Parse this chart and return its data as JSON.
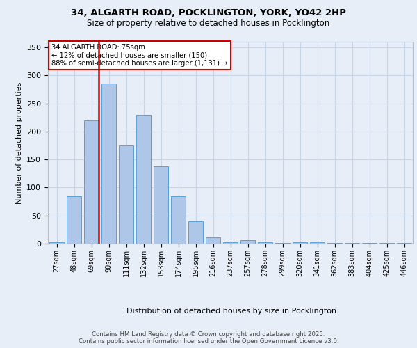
{
  "title_line1": "34, ALGARTH ROAD, POCKLINGTON, YORK, YO42 2HP",
  "title_line2": "Size of property relative to detached houses in Pocklington",
  "xlabel": "Distribution of detached houses by size in Pocklington",
  "ylabel": "Number of detached properties",
  "footer_line1": "Contains HM Land Registry data © Crown copyright and database right 2025.",
  "footer_line2": "Contains public sector information licensed under the Open Government Licence v3.0.",
  "annotation_line1": "34 ALGARTH ROAD: 75sqm",
  "annotation_line2": "← 12% of detached houses are smaller (150)",
  "annotation_line3": "88% of semi-detached houses are larger (1,131) →",
  "bar_categories": [
    "27sqm",
    "48sqm",
    "69sqm",
    "90sqm",
    "111sqm",
    "132sqm",
    "153sqm",
    "174sqm",
    "195sqm",
    "216sqm",
    "237sqm",
    "257sqm",
    "278sqm",
    "299sqm",
    "320sqm",
    "341sqm",
    "362sqm",
    "383sqm",
    "404sqm",
    "425sqm",
    "446sqm"
  ],
  "bar_values": [
    2,
    85,
    220,
    285,
    175,
    230,
    138,
    85,
    40,
    11,
    2,
    6,
    2,
    1,
    3,
    2,
    1,
    1,
    1,
    1,
    1
  ],
  "bar_color": "#aec6e8",
  "bar_edge_color": "#5a9fd4",
  "vline_color": "#cc0000",
  "vline_x_index": 2,
  "grid_color": "#c8d4e8",
  "background_color": "#e8eef8",
  "annotation_box_color": "#ffffff",
  "annotation_box_edge": "#cc0000",
  "ylim": [
    0,
    360
  ],
  "yticks": [
    0,
    50,
    100,
    150,
    200,
    250,
    300,
    350
  ]
}
